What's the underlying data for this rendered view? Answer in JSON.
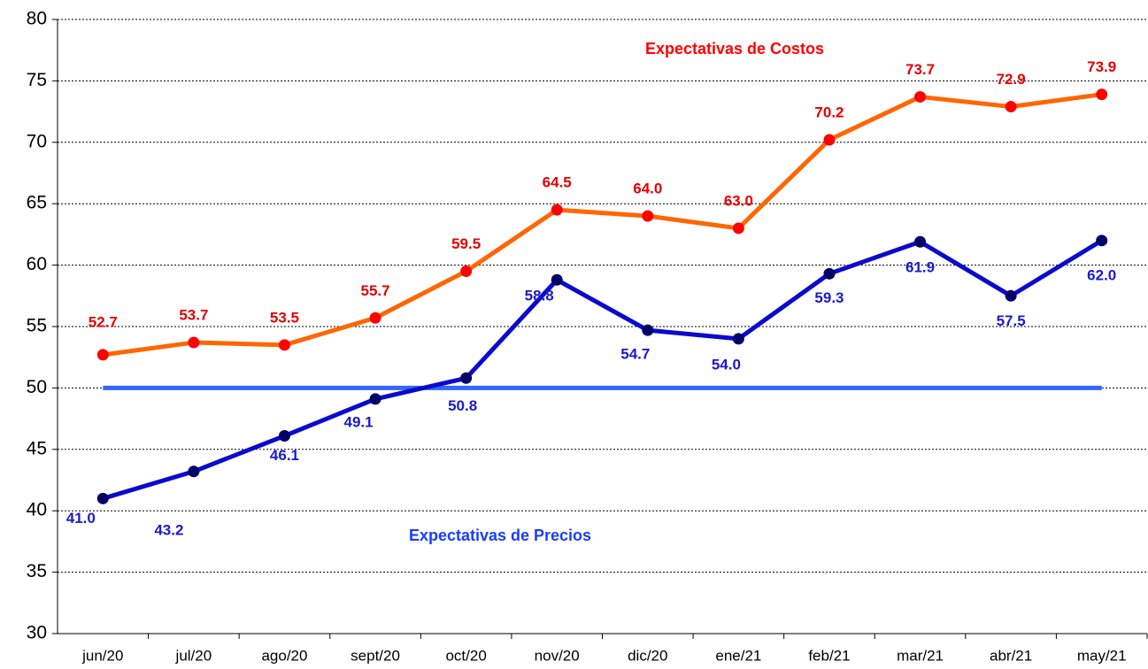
{
  "chart_data": {
    "type": "line",
    "categories": [
      "jun/20",
      "jul/20",
      "ago/20",
      "sept/20",
      "oct/20",
      "nov/20",
      "dic/20",
      "ene/21",
      "feb/21",
      "mar/21",
      "abr/21",
      "may/21"
    ],
    "series": [
      {
        "name": "Expectativas de Costos",
        "color": "#ff6600",
        "marker_color": "#ff0000",
        "label_color": "#e60000",
        "values": [
          52.7,
          53.7,
          53.5,
          55.7,
          59.5,
          64.5,
          64.0,
          63.0,
          70.2,
          73.7,
          72.9,
          73.9
        ],
        "value_labels": [
          "52.7",
          "53.7",
          "53.5",
          "55.7",
          "59.5",
          "64.5",
          "64.0",
          "63.0",
          "70.2",
          "73.7",
          "72.9",
          "73.9"
        ]
      },
      {
        "name": "Expectativas de Precios",
        "color": "#0a0acc",
        "marker_color": "#000066",
        "label_color": "#1a1acc",
        "values": [
          41.0,
          43.2,
          46.1,
          49.1,
          50.8,
          58.8,
          54.7,
          54.0,
          59.3,
          61.9,
          57.5,
          62.0
        ],
        "value_labels": [
          "41.0",
          "43.2",
          "46.1",
          "49.1",
          "50.8",
          "58.8",
          "54.7",
          "54.0",
          "59.3",
          "61.9",
          "57.5",
          "62.0"
        ]
      }
    ],
    "reference_line": {
      "value": 50,
      "color": "#3366ff"
    },
    "ylim": [
      30,
      80
    ],
    "yticks": [
      30,
      35,
      40,
      45,
      50,
      55,
      60,
      65,
      70,
      75,
      80
    ],
    "grid": true
  }
}
